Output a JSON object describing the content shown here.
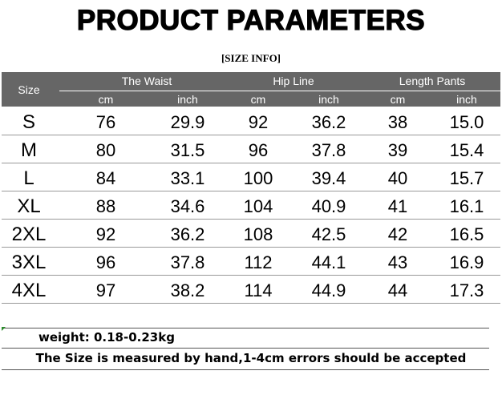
{
  "header": {
    "title": "PRODUCT PARAMETERS",
    "subtitle": "[SIZE INFO]"
  },
  "table": {
    "size_label": "Size",
    "groups": [
      {
        "name": "The Waist",
        "units": [
          "cm",
          "inch"
        ]
      },
      {
        "name": "Hip Line",
        "units": [
          "cm",
          "inch"
        ]
      },
      {
        "name": "Length Pants",
        "units": [
          "cm",
          "inch"
        ]
      }
    ],
    "rows": [
      [
        "S",
        "76",
        "29.9",
        "92",
        "36.2",
        "38",
        "15.0"
      ],
      [
        "M",
        "80",
        "31.5",
        "96",
        "37.8",
        "39",
        "15.4"
      ],
      [
        "L",
        "84",
        "33.1",
        "100",
        "39.4",
        "40",
        "15.7"
      ],
      [
        "XL",
        "88",
        "34.6",
        "104",
        "40.9",
        "41",
        "16.1"
      ],
      [
        "2XL",
        "92",
        "36.2",
        "108",
        "42.5",
        "42",
        "16.5"
      ],
      [
        "3XL",
        "96",
        "37.8",
        "112",
        "44.1",
        "43",
        "16.9"
      ],
      [
        "4XL",
        "97",
        "38.2",
        "114",
        "44.9",
        "44",
        "17.3"
      ]
    ]
  },
  "notes": {
    "weight": "weight: 0.18-0.23kg",
    "measure": "The Size is measured by hand,1-4cm errors should be accepted"
  }
}
